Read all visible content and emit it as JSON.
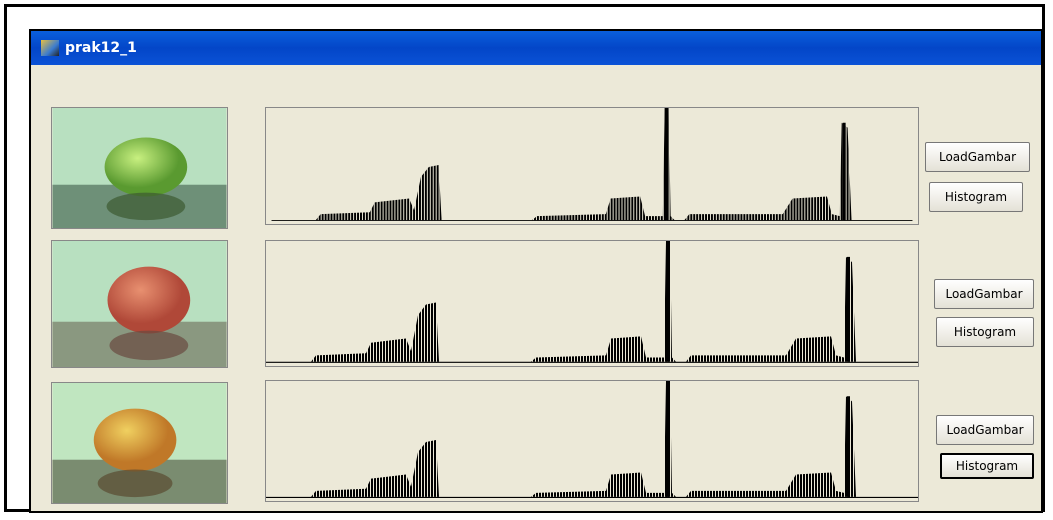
{
  "window": {
    "title": "prak12_1"
  },
  "rows": [
    {
      "buttons": [
        "LoadGambar",
        "Histogram"
      ]
    },
    {
      "buttons": [
        "LoadGambar",
        "Histogram"
      ]
    },
    {
      "buttons": [
        "LoadGambar",
        "Histogram"
      ]
    }
  ]
}
